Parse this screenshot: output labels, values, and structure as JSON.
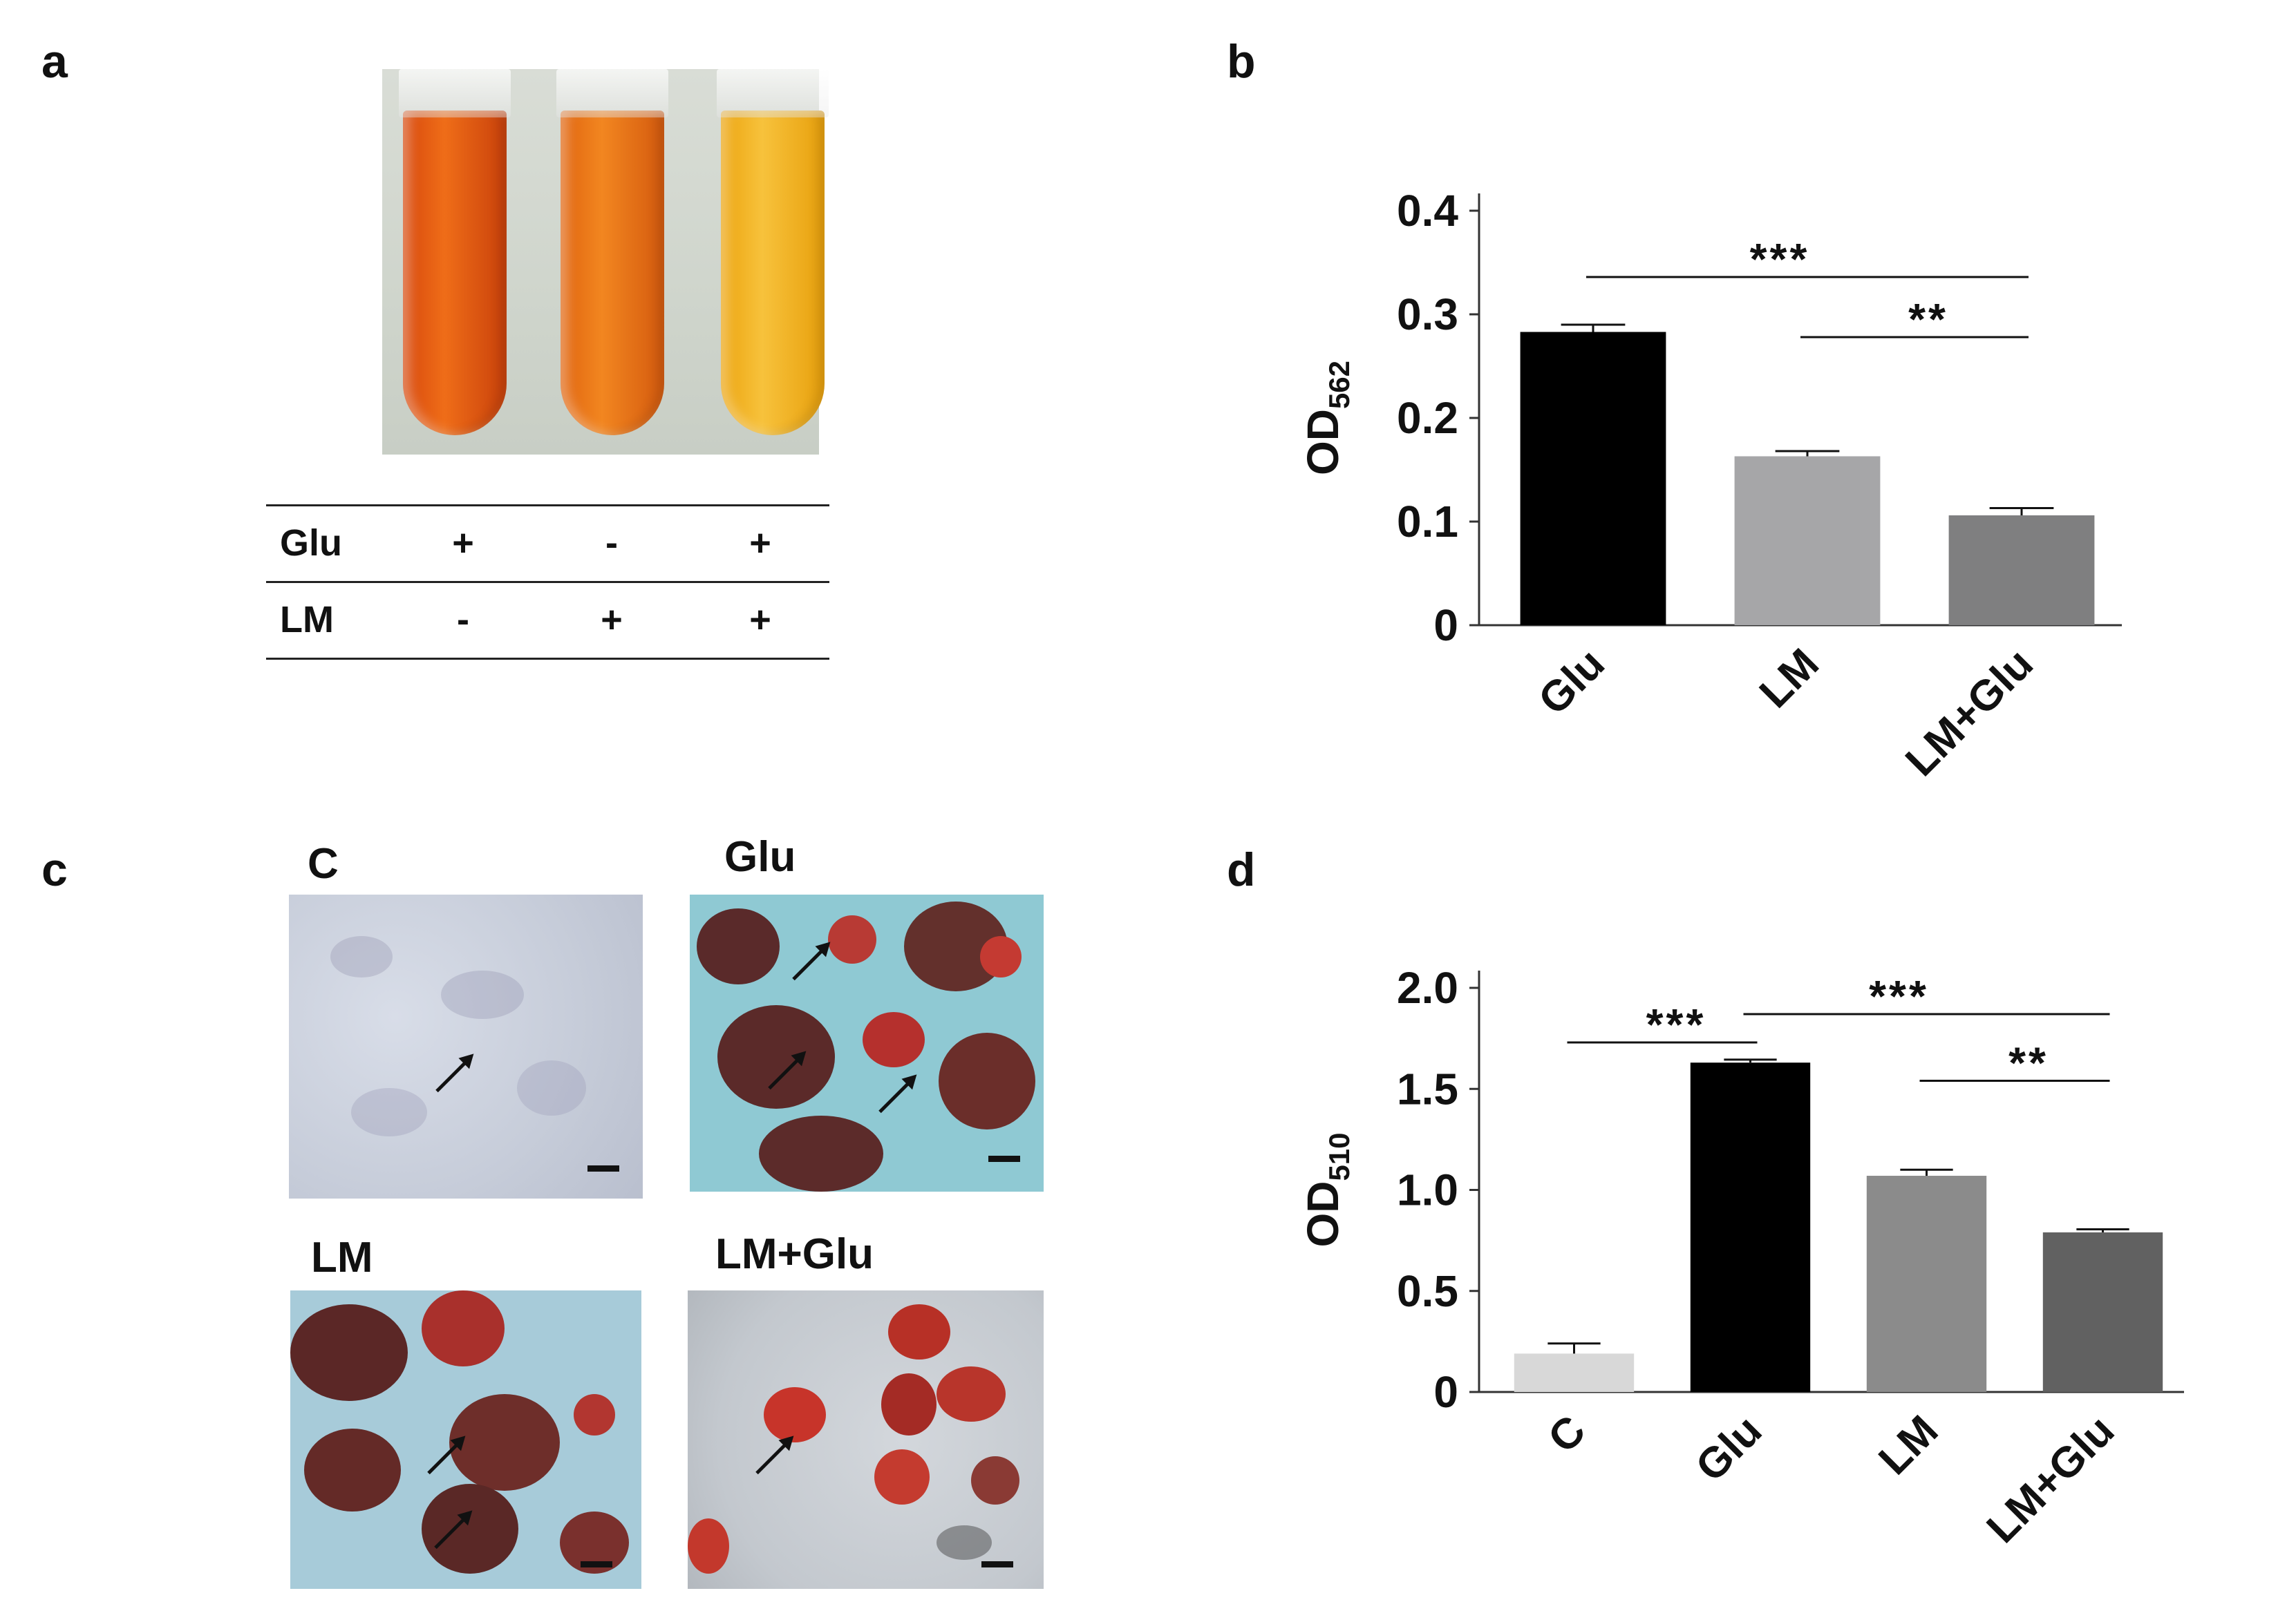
{
  "panels": {
    "a": "a",
    "b": "b",
    "c": "c",
    "d": "d"
  },
  "panel_a": {
    "table": [
      {
        "name": "Glu",
        "values": [
          "+",
          "-",
          "+"
        ]
      },
      {
        "name": "LM",
        "values": [
          "-",
          "+",
          "+"
        ]
      }
    ],
    "tube_colors": [
      "#e85a12",
      "#ee7a1a",
      "#f3b21f"
    ]
  },
  "panel_c": {
    "titles": {
      "c": "C",
      "glu": "Glu",
      "lm": "LM",
      "lmglu": "LM+Glu"
    }
  },
  "chart_data": [
    {
      "panel": "b",
      "type": "bar",
      "categories": [
        "Glu",
        "LM",
        "LM+Glu"
      ],
      "values": [
        0.283,
        0.163,
        0.106
      ],
      "errors": [
        0.007,
        0.005,
        0.007
      ],
      "colors": [
        "#000000",
        "#a6a6a8",
        "#7f7f80"
      ],
      "ylabel_main": "OD",
      "ylabel_sub": "562",
      "ylim": [
        0,
        0.4
      ],
      "yticks": [
        0,
        0.1,
        0.2,
        0.3,
        0.4
      ],
      "ytick_labels": [
        "0",
        "0.1",
        "0.2",
        "0.3",
        "0.4"
      ],
      "significance": [
        {
          "from": 0,
          "to": 2,
          "y": 0.336,
          "label": "***"
        },
        {
          "from": 1,
          "to": 2,
          "y": 0.278,
          "label": "**"
        }
      ]
    },
    {
      "panel": "d",
      "type": "bar",
      "categories": [
        "C",
        "Glu",
        "LM",
        "LM+Glu"
      ],
      "values": [
        0.19,
        1.63,
        1.07,
        0.79
      ],
      "errors": [
        0.05,
        0.015,
        0.03,
        0.015
      ],
      "colors": [
        "#d8d8d8",
        "#000000",
        "#8b8b8b",
        "#616161"
      ],
      "ylabel_main": "OD",
      "ylabel_sub": "510",
      "ylim": [
        0,
        2.0
      ],
      "yticks": [
        0,
        0.5,
        1.0,
        1.5,
        2.0
      ],
      "ytick_labels": [
        "0",
        "0.5",
        "1.0",
        "1.5",
        "2.0"
      ],
      "significance": [
        {
          "from": 0,
          "to": 1,
          "y": 1.73,
          "label": "***"
        },
        {
          "from": 1,
          "to": 3,
          "y": 1.87,
          "label": "***"
        },
        {
          "from": 2,
          "to": 3,
          "y": 1.54,
          "label": "**"
        }
      ]
    }
  ]
}
